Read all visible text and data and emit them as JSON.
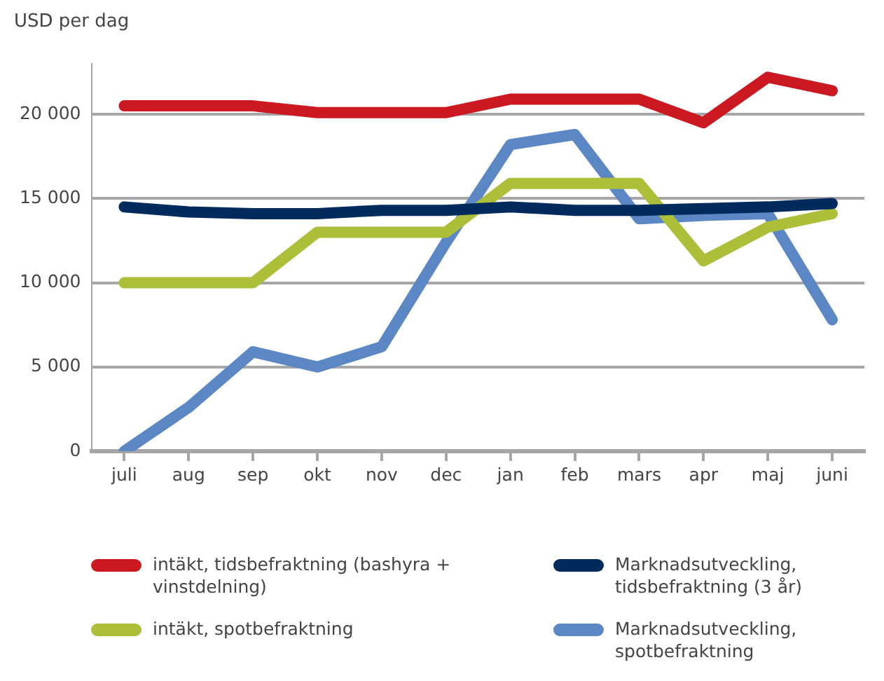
{
  "chart_data": {
    "type": "line",
    "ylabel": "USD per dag",
    "categories": [
      "juli",
      "aug",
      "sep",
      "okt",
      "nov",
      "dec",
      "jan",
      "feb",
      "mars",
      "apr",
      "maj",
      "juni"
    ],
    "series": [
      {
        "name": "intäkt, tidsbefraktning (bashyra + vinstdelning)",
        "color": "#cc1820",
        "values": [
          20500,
          20500,
          20500,
          20100,
          20100,
          20100,
          20900,
          20900,
          20900,
          19500,
          22200,
          21400
        ]
      },
      {
        "name": "Marknadsutveckling, tidsbefraktning (3 år)",
        "color": "#002b5c",
        "values": [
          14500,
          14200,
          14100,
          14100,
          14300,
          14300,
          14500,
          14300,
          14300,
          14400,
          14500,
          14700
        ]
      },
      {
        "name": "intäkt, spotbefraktning",
        "color": "#adbe38",
        "values": [
          10000,
          10000,
          10000,
          13000,
          13000,
          13000,
          15900,
          15900,
          15900,
          11300,
          13300,
          14100
        ]
      },
      {
        "name": "Marknadsutveckling, spotbefraktning",
        "color": "#5b88c4",
        "values": [
          0,
          2600,
          5900,
          5000,
          6200,
          12400,
          18200,
          18800,
          13800,
          14000,
          14100,
          7800
        ]
      }
    ],
    "ylim": [
      0,
      23000
    ],
    "yticks": [
      {
        "value": 0,
        "label": "0"
      },
      {
        "value": 5000,
        "label": "5 000"
      },
      {
        "value": 10000,
        "label": "10 000"
      },
      {
        "value": 15000,
        "label": "15 000"
      },
      {
        "value": 20000,
        "label": "20 000"
      }
    ],
    "grid": "y",
    "legend": "bottom",
    "marker": "none",
    "line_style": "solid"
  }
}
